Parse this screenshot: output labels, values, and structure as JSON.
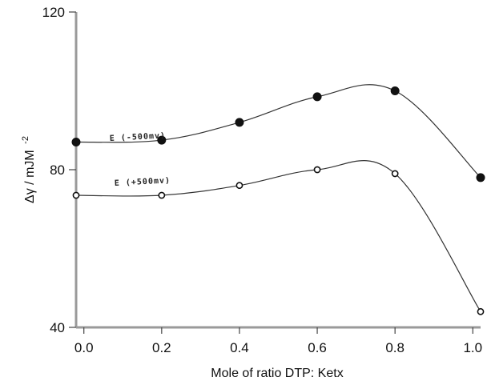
{
  "chart_data": {
    "type": "scatter",
    "title": "",
    "xlabel": "Mole of ratio DTP: Ketx",
    "ylabel": "Δγ / mJM",
    "ylabel_superscript": "-2",
    "xlim": [
      -0.02,
      1.02
    ],
    "ylim": [
      40,
      120
    ],
    "x_ticks": [
      "0.0",
      "0.2",
      "0.4",
      "0.6",
      "0.8",
      "1.0"
    ],
    "y_ticks": [
      "40",
      "80",
      "120"
    ],
    "x_tick_values": [
      0.0,
      0.2,
      0.4,
      0.6,
      0.8,
      1.0
    ],
    "y_tick_values": [
      40,
      80,
      120
    ],
    "grid": false,
    "series": [
      {
        "label": "E (-500mv)",
        "marker": "filled-circle",
        "x": [
          -0.02,
          0.2,
          0.4,
          0.6,
          0.8,
          1.02
        ],
        "y": [
          87,
          87.5,
          92,
          98.5,
          100,
          78
        ]
      },
      {
        "label": "E (+500mv)",
        "marker": "open-circle",
        "x": [
          -0.02,
          0.2,
          0.4,
          0.6,
          0.8,
          1.02
        ],
        "y": [
          73.5,
          73.5,
          76,
          80,
          79,
          44
        ]
      }
    ]
  }
}
